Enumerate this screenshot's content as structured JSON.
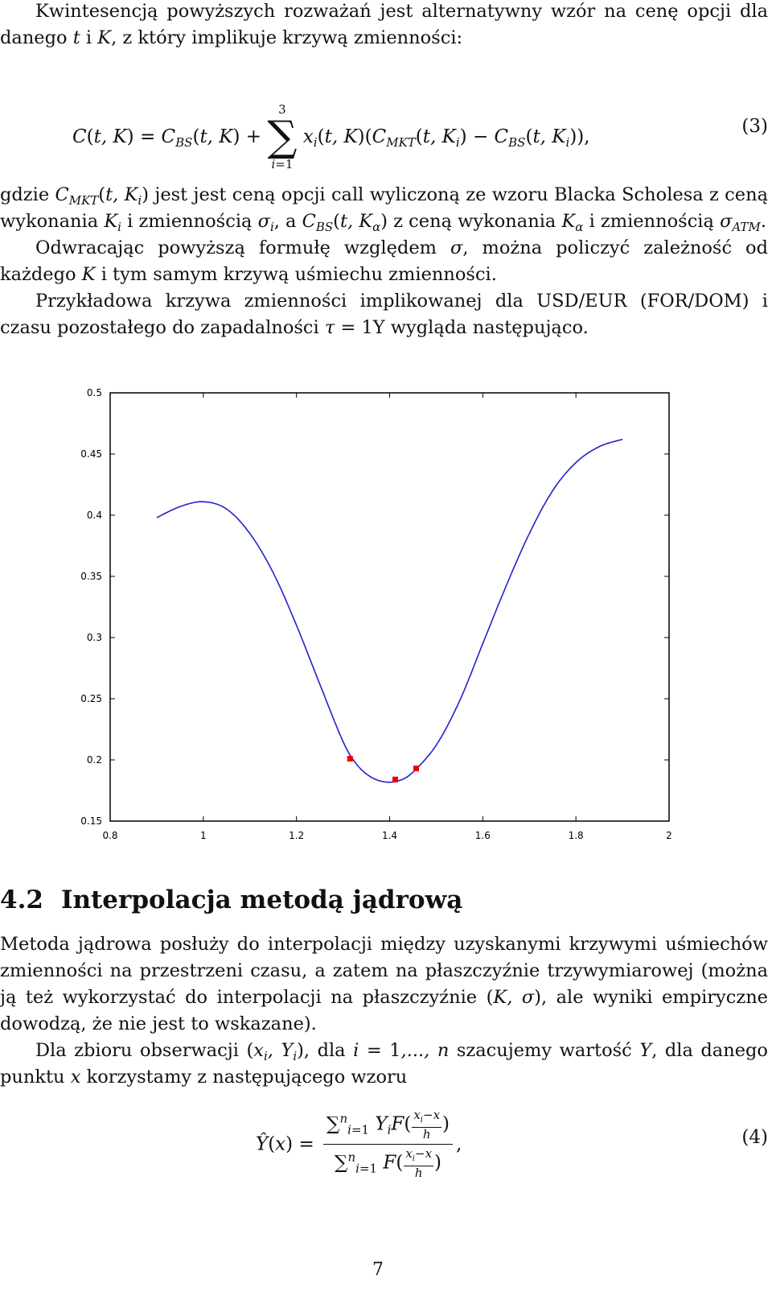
{
  "intro": {
    "line": "Kwintesencją powyższych rozważań jest alternatywny wzór na cenę opcji dla danego t i K, z który implikuje krzywą zmienności:"
  },
  "equation3": {
    "number": "(3)"
  },
  "definition": {
    "p1": "gdzie C_MKT(t, K_i) jest jest ceną opcji call wyliczoną ze wzoru Blacka Scholesa z ceną wykonania K_i i zmiennością σ_i, a C_BS(t, K_α) z ceną wykonania K_α i zmiennością σ_ATM.",
    "p2": "Odwracając powyższą formułę względem σ, można policzyć zależność od każdego K i tym samym krzywą uśmiechu zmienności.",
    "p3": "Przykładowa krzywa zmienności implikowanej dla USD/EUR (FOR/DOM) i czasu pozostałego do zapadalności τ = 1Y wygląda następująco."
  },
  "chart_data": {
    "type": "line",
    "xlim": [
      0.8,
      2.0
    ],
    "ylim": [
      0.15,
      0.5
    ],
    "x_ticks": [
      "0.8",
      "1",
      "1.2",
      "1.4",
      "1.6",
      "1.8",
      "2"
    ],
    "y_ticks": [
      "0.5",
      "0.45",
      "0.4",
      "0.35",
      "0.3",
      "0.25",
      "0.2",
      "0.15"
    ],
    "grid": false,
    "line_color": "#2222cc",
    "marker_color": "#ee0000",
    "series": [
      {
        "points": [
          [
            0.9,
            0.398
          ],
          [
            0.95,
            0.407
          ],
          [
            1.0,
            0.411
          ],
          [
            1.05,
            0.405
          ],
          [
            1.1,
            0.385
          ],
          [
            1.15,
            0.353
          ],
          [
            1.2,
            0.31
          ],
          [
            1.25,
            0.262
          ],
          [
            1.3,
            0.215
          ],
          [
            1.33,
            0.196
          ],
          [
            1.36,
            0.186
          ],
          [
            1.39,
            0.182
          ],
          [
            1.42,
            0.183
          ],
          [
            1.45,
            0.19
          ],
          [
            1.5,
            0.212
          ],
          [
            1.55,
            0.248
          ],
          [
            1.6,
            0.295
          ],
          [
            1.65,
            0.342
          ],
          [
            1.7,
            0.385
          ],
          [
            1.75,
            0.42
          ],
          [
            1.8,
            0.443
          ],
          [
            1.85,
            0.456
          ],
          [
            1.9,
            0.462
          ]
        ]
      }
    ],
    "markers": [
      [
        1.315,
        0.201
      ],
      [
        1.412,
        0.184
      ],
      [
        1.457,
        0.193
      ]
    ]
  },
  "section": {
    "number": "4.2",
    "title": "Interpolacja metodą jądrową"
  },
  "body": {
    "p1": "Metoda jądrowa posłuży do interpolacji między uzyskanymi krzywymi uśmiechów zmienności na przestrzeni czasu, a zatem na płaszczyźnie trzywymiarowej (można ją też wykorzystać do interpolacji na płaszczyźnie (K, σ), ale wyniki empiryczne dowodzą, że nie jest to wskazane).",
    "p2": "Dla zbioru obserwacji (x_i, Y_i), dla i = 1,..., n szacujemy wartość Y, dla danego punktu x korzystamy z następującego wzoru"
  },
  "equation4": {
    "number": "(4)"
  },
  "page": {
    "number": "7"
  }
}
